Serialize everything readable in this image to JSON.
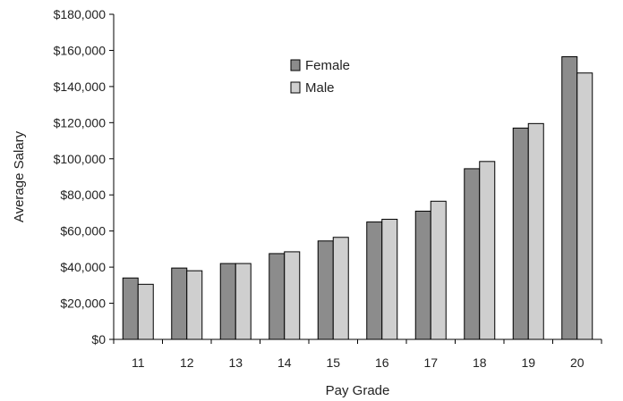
{
  "chart_data": {
    "type": "bar",
    "title": "",
    "xlabel": "Pay Grade",
    "ylabel": "Average Salary",
    "categories": [
      "11",
      "12",
      "13",
      "14",
      "15",
      "16",
      "17",
      "18",
      "19",
      "20"
    ],
    "series": [
      {
        "name": "Female",
        "color": "#8c8c8c",
        "values": [
          34000,
          39500,
          42000,
          47500,
          54500,
          65000,
          71000,
          94500,
          117000,
          156500
        ]
      },
      {
        "name": "Male",
        "color": "#cfcfcf",
        "values": [
          30500,
          38000,
          42000,
          48500,
          56500,
          66500,
          76500,
          98500,
          119500,
          147500
        ]
      }
    ],
    "ylim": [
      0,
      180000
    ],
    "yticks": [
      0,
      20000,
      40000,
      60000,
      80000,
      100000,
      120000,
      140000,
      160000,
      180000
    ],
    "ytick_labels": [
      "$0",
      "$20,000",
      "$40,000",
      "$60,000",
      "$80,000",
      "$100,000",
      "$120,000",
      "$140,000",
      "$160,000",
      "$180,000"
    ],
    "grid": false,
    "legend_position": "top-center"
  }
}
